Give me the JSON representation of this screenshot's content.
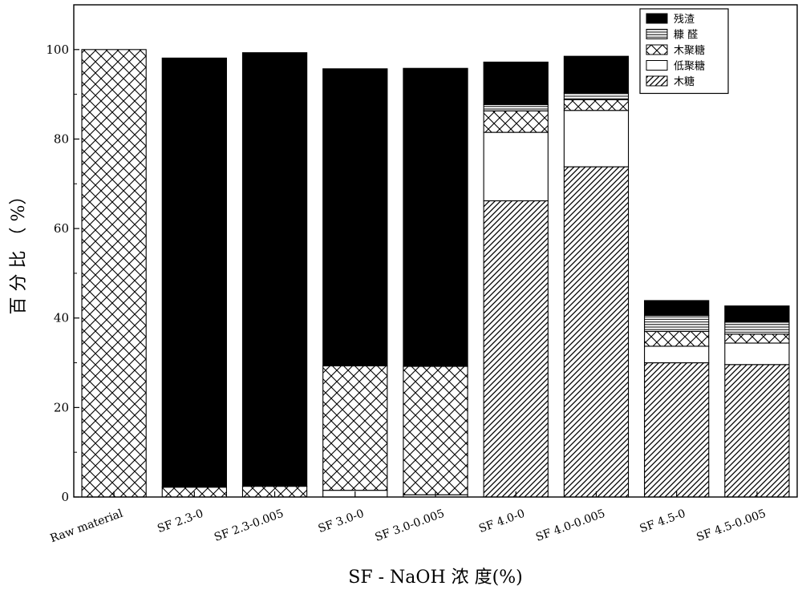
{
  "chart_data": {
    "type": "bar",
    "stacked": true,
    "xlabel": "SF - NaOH 浓 度(%)",
    "ylabel": "百 分 比 （ %）",
    "ylim": [
      0,
      110
    ],
    "yticks": [
      0,
      20,
      40,
      60,
      80,
      100
    ],
    "grid": false,
    "legend_position": "top-right",
    "categories": [
      "Raw material",
      "SF 2.3-0",
      "SF 2.3-0.005",
      "SF 3.0-0",
      "SF 3.0-0.005",
      "SF 4.0-0",
      "SF 4.0-0.005",
      "SF 4.5-0",
      "SF 4.5-0.005"
    ],
    "series": [
      {
        "name": "木糖",
        "pattern": "diagonal-hatch",
        "values": [
          0,
          0,
          0,
          0,
          0,
          66.2,
          73.8,
          30,
          29.6
        ]
      },
      {
        "name": "低聚糖",
        "pattern": "white",
        "values": [
          0,
          0,
          0,
          1.5,
          0.5,
          15.3,
          12.6,
          3.7,
          4.8
        ]
      },
      {
        "name": "木聚糖",
        "pattern": "crosshatch",
        "values": [
          100,
          2.2,
          2.4,
          27.8,
          28.7,
          4.8,
          2.4,
          3.3,
          2.0
        ]
      },
      {
        "name": "糠 醛",
        "pattern": "horizontal-lines",
        "values": [
          0,
          0,
          0,
          0,
          0,
          1.4,
          1.5,
          3.6,
          2.7
        ]
      },
      {
        "name": "残渣",
        "pattern": "solid-black",
        "values": [
          0,
          95.9,
          96.9,
          66.4,
          66.6,
          9.5,
          8.2,
          3.3,
          3.6
        ]
      }
    ]
  }
}
